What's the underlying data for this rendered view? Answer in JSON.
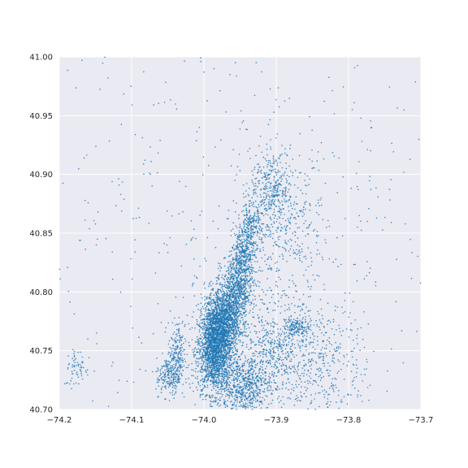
{
  "chart_data": {
    "type": "scatter",
    "title": "",
    "xlabel": "",
    "ylabel": "",
    "xlim": [
      -74.2,
      -73.7
    ],
    "ylim": [
      40.7,
      41.0
    ],
    "x_ticks": [
      -74.2,
      -74.1,
      -74.0,
      -73.9,
      -73.8,
      -73.7
    ],
    "x_tick_labels": [
      "−74.2",
      "−74.1",
      "−74.0",
      "−73.9",
      "−73.8",
      "−73.7"
    ],
    "y_ticks": [
      40.7,
      40.75,
      40.8,
      40.85,
      40.9,
      40.95,
      41.0
    ],
    "y_tick_labels": [
      "40.70",
      "40.75",
      "40.80",
      "40.85",
      "40.90",
      "40.95",
      "41.00"
    ],
    "grid": true,
    "legend": "none",
    "colors": {
      "point": "#1f77b4",
      "plot_background": "#eaeaf2",
      "grid": "#ffffff"
    },
    "series": [
      {
        "points_summary": "dense pickup-location scatter centered on Manhattan",
        "clusters": [
          {
            "x": -73.985,
            "y": 40.75,
            "sx": 0.012,
            "sy": 0.018,
            "n": 1800
          },
          {
            "x": -73.975,
            "y": 40.775,
            "sx": 0.012,
            "sy": 0.015,
            "n": 1200
          },
          {
            "x": -73.955,
            "y": 40.8,
            "sx": 0.01,
            "sy": 0.015,
            "n": 700
          },
          {
            "x": -73.945,
            "y": 40.83,
            "sx": 0.008,
            "sy": 0.015,
            "n": 400
          },
          {
            "x": -73.935,
            "y": 40.855,
            "sx": 0.007,
            "sy": 0.01,
            "n": 200
          },
          {
            "x": -73.905,
            "y": 40.89,
            "sx": 0.015,
            "sy": 0.015,
            "n": 300
          },
          {
            "x": -73.89,
            "y": 40.85,
            "sx": 0.03,
            "sy": 0.03,
            "n": 400
          },
          {
            "x": -73.945,
            "y": 40.72,
            "sx": 0.018,
            "sy": 0.012,
            "n": 600
          },
          {
            "x": -73.9,
            "y": 40.75,
            "sx": 0.03,
            "sy": 0.02,
            "n": 600
          },
          {
            "x": -73.87,
            "y": 40.77,
            "sx": 0.008,
            "sy": 0.004,
            "n": 120
          },
          {
            "x": -73.83,
            "y": 40.74,
            "sx": 0.03,
            "sy": 0.025,
            "n": 300
          },
          {
            "x": -74.038,
            "y": 40.742,
            "sx": 0.006,
            "sy": 0.015,
            "n": 250
          },
          {
            "x": -74.05,
            "y": 40.728,
            "sx": 0.008,
            "sy": 0.008,
            "n": 150
          },
          {
            "x": -74.175,
            "y": 40.735,
            "sx": 0.008,
            "sy": 0.008,
            "n": 60
          },
          {
            "x": -73.95,
            "y": 40.85,
            "sx": 0.2,
            "sy": 0.12,
            "n": 700
          }
        ]
      }
    ]
  }
}
